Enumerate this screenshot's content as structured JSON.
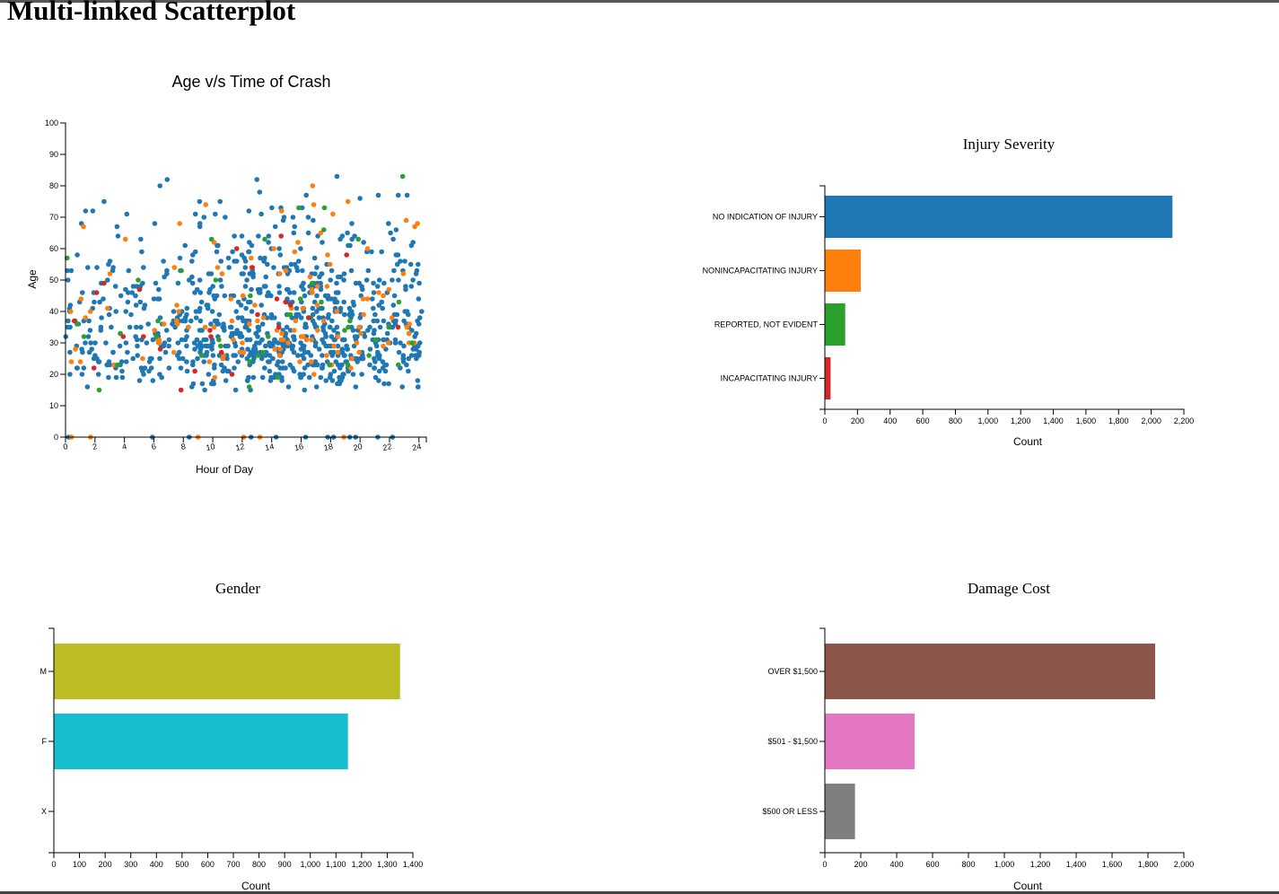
{
  "page": {
    "title": "Multi-linked Scatterplot"
  },
  "chart_data": [
    {
      "id": "scatter",
      "type": "scatter",
      "title": "Age v/s Time of Crash",
      "xlabel": "Hour of Day",
      "ylabel": "Age",
      "xlim": [
        0,
        24.5
      ],
      "ylim": [
        0,
        100
      ],
      "xticks": [
        0,
        2,
        4,
        6,
        8,
        10,
        12,
        14,
        16,
        18,
        20,
        22,
        24
      ],
      "yticks": [
        0,
        10,
        20,
        30,
        40,
        50,
        60,
        70,
        80,
        90,
        100
      ],
      "grid": false,
      "colors": {
        "NO INDICATION OF INJURY": "#1f77b4",
        "NONINCAPACITATING INJURY": "#ff7f0e",
        "REPORTED, NOT EVIDENT": "#2ca02c",
        "INCAPACITATING INJURY": "#d62728"
      },
      "series": [
        {
          "key": "NO INDICATION OF INJURY",
          "approx_count": 900
        },
        {
          "key": "NONINCAPACITATING INJURY",
          "approx_count": 120
        },
        {
          "key": "REPORTED, NOT EVIDENT",
          "approx_count": 45
        },
        {
          "key": "INCAPACITATING INJURY",
          "approx_count": 25
        }
      ],
      "zero_age_points": [
        {
          "x": 0.2,
          "c": "#1f77b4"
        },
        {
          "x": 0.4,
          "c": "#ff7f0e"
        },
        {
          "x": 1.7,
          "c": "#ff7f0e"
        },
        {
          "x": 5.9,
          "c": "#1f77b4"
        },
        {
          "x": 8.4,
          "c": "#1f77b4"
        },
        {
          "x": 9.0,
          "c": "#ff7f0e"
        },
        {
          "x": 12.1,
          "c": "#ff7f0e"
        },
        {
          "x": 12.6,
          "c": "#1f77b4"
        },
        {
          "x": 13.2,
          "c": "#ff7f0e"
        },
        {
          "x": 14.3,
          "c": "#1f77b4"
        },
        {
          "x": 16.3,
          "c": "#1f77b4"
        },
        {
          "x": 17.8,
          "c": "#1f77b4"
        },
        {
          "x": 18.2,
          "c": "#1f77b4"
        },
        {
          "x": 18.9,
          "c": "#ff7f0e"
        },
        {
          "x": 19.3,
          "c": "#1f77b4"
        },
        {
          "x": 19.7,
          "c": "#1f77b4"
        },
        {
          "x": 21.2,
          "c": "#1f77b4"
        },
        {
          "x": 22.2,
          "c": "#1f77b4"
        }
      ]
    },
    {
      "id": "injury",
      "type": "bar",
      "orientation": "horizontal",
      "title": "Injury Severity",
      "xlabel": "Count",
      "xlim": [
        0,
        2200
      ],
      "xticks": [
        0,
        200,
        400,
        600,
        800,
        1000,
        1200,
        1400,
        1600,
        1800,
        2000,
        2200
      ],
      "xtick_labels": [
        "0",
        "200",
        "400",
        "600",
        "800",
        "1,000",
        "1,200",
        "1,400",
        "1,600",
        "1,800",
        "2,000",
        "2,200"
      ],
      "categories": [
        "NO INDICATION OF INJURY",
        "NONINCAPACITATING INJURY",
        "REPORTED, NOT EVIDENT",
        "INCAPACITATING INJURY"
      ],
      "values": [
        2130,
        220,
        125,
        35
      ],
      "colors": [
        "#1f77b4",
        "#ff7f0e",
        "#2ca02c",
        "#d62728"
      ]
    },
    {
      "id": "gender",
      "type": "bar",
      "orientation": "horizontal",
      "title": "Gender",
      "xlabel": "Count",
      "xlim": [
        0,
        1400
      ],
      "xticks": [
        0,
        100,
        200,
        300,
        400,
        500,
        600,
        700,
        800,
        900,
        1000,
        1100,
        1200,
        1300,
        1400
      ],
      "xtick_labels": [
        "0",
        "100",
        "200",
        "300",
        "400",
        "500",
        "600",
        "700",
        "800",
        "900",
        "1,000",
        "1,100",
        "1,200",
        "1,300",
        "1,400"
      ],
      "categories": [
        "M",
        "F",
        "X"
      ],
      "values": [
        1350,
        1147,
        0
      ],
      "colors": [
        "#bcbd22",
        "#17becf",
        "#7f7f7f"
      ]
    },
    {
      "id": "damage",
      "type": "bar",
      "orientation": "horizontal",
      "title": "Damage Cost",
      "xlabel": "Count",
      "xlim": [
        0,
        2000
      ],
      "xticks": [
        0,
        200,
        400,
        600,
        800,
        1000,
        1200,
        1400,
        1600,
        1800,
        2000
      ],
      "xtick_labels": [
        "0",
        "200",
        "400",
        "600",
        "800",
        "1,000",
        "1,200",
        "1,400",
        "1,600",
        "1,800",
        "2,000"
      ],
      "categories": [
        "OVER $1,500",
        "$501 - $1,500",
        "$500 OR LESS"
      ],
      "values": [
        1840,
        500,
        168
      ],
      "colors": [
        "#8c564b",
        "#e377c2",
        "#7f7f7f"
      ]
    }
  ]
}
